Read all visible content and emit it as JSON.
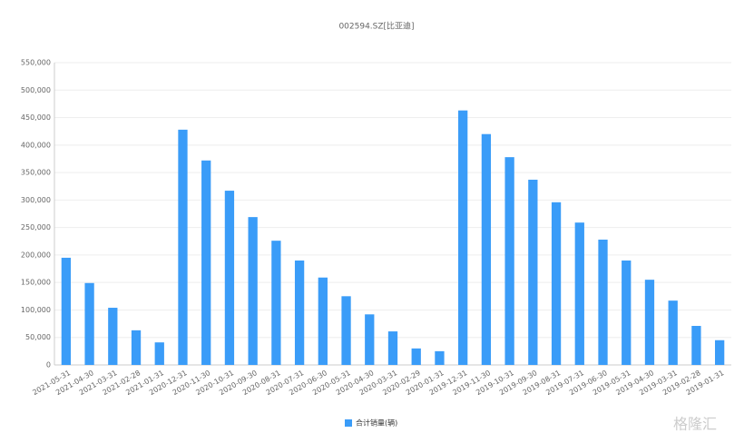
{
  "chart_data": {
    "type": "bar",
    "title": "002594.SZ[比亚迪]",
    "categories": [
      "2021-05-31",
      "2021-04-30",
      "2021-03-31",
      "2021-02-28",
      "2021-01-31",
      "2020-12-31",
      "2020-11-30",
      "2020-10-31",
      "2020-09-30",
      "2020-08-31",
      "2020-07-31",
      "2020-06-30",
      "2020-05-31",
      "2020-04-30",
      "2020-03-31",
      "2020-02-29",
      "2020-01-31",
      "2019-12-31",
      "2019-11-30",
      "2019-10-31",
      "2019-09-30",
      "2019-08-31",
      "2019-07-31",
      "2019-06-30",
      "2019-05-31",
      "2019-04-30",
      "2019-03-31",
      "2019-02-28",
      "2019-01-31"
    ],
    "series": [
      {
        "name": "合计销量(辆)",
        "color": "#3a9cf8",
        "values": [
          195000,
          149000,
          104000,
          63000,
          41000,
          428000,
          372000,
          317000,
          269000,
          226000,
          190000,
          159000,
          125000,
          92000,
          61000,
          30000,
          25000,
          463000,
          420000,
          378000,
          337000,
          296000,
          259000,
          228000,
          190000,
          155000,
          117000,
          71000,
          45000
        ]
      }
    ],
    "ylim": [
      0,
      550000
    ],
    "yticks": [
      0,
      {
        "value": 50000,
        "label": "50,000"
      },
      {
        "value": 100000,
        "label": "100,000"
      },
      {
        "value": 150000,
        "label": "150,000"
      },
      {
        "value": 200000,
        "label": "200,000"
      },
      {
        "value": 250000,
        "label": "250,000"
      },
      {
        "value": 300000,
        "label": "300,000"
      },
      {
        "value": 350000,
        "label": "350,000"
      },
      {
        "value": 400000,
        "label": "400,000"
      },
      {
        "value": 450000,
        "label": "450,000"
      },
      {
        "value": 500000,
        "label": "500,000"
      },
      {
        "value": 550000,
        "label": "550,000"
      }
    ],
    "grid": true,
    "watermark": "格隆汇"
  }
}
